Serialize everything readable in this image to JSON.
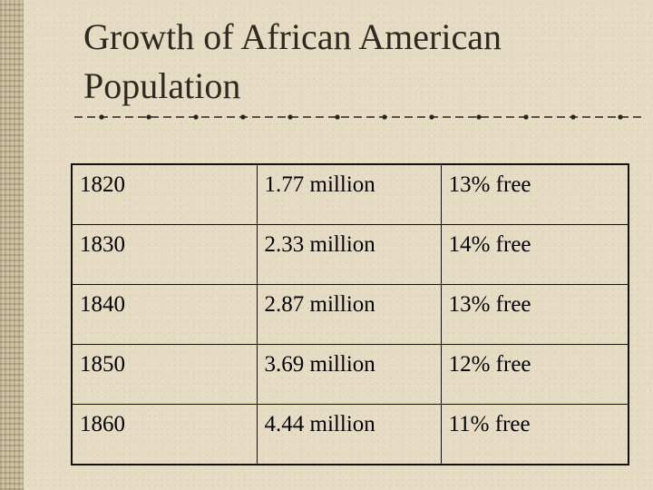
{
  "slide": {
    "title_line1": "Growth of African American",
    "title_line2": "Population"
  },
  "table": {
    "rows": [
      {
        "year": "1820",
        "population": "1.77 million",
        "free": "13% free"
      },
      {
        "year": "1830",
        "population": "2.33 million",
        "free": "14% free"
      },
      {
        "year": "1840",
        "population": "2.87 million",
        "free": "13% free"
      },
      {
        "year": "1850",
        "population": "3.69 million",
        "free": "12% free"
      },
      {
        "year": "1860",
        "population": "4.44 million",
        "free": "11% free"
      }
    ]
  }
}
